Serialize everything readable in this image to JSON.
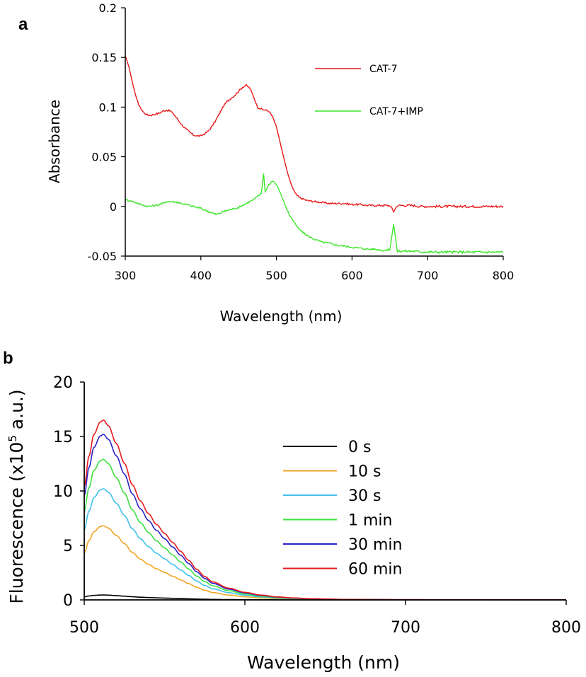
{
  "chart_data": [
    {
      "panel_label": "a",
      "type": "line",
      "xlabel": "Wavelength (nm)",
      "ylabel": "Absorbance",
      "xlim": [
        300,
        800
      ],
      "ylim": [
        -0.05,
        0.2
      ],
      "xticks": [
        "300",
        "400",
        "500",
        "600",
        "700",
        "800"
      ],
      "yticks": [
        "-0.05",
        "0",
        "0.05",
        "0.1",
        "0.15",
        "0.2"
      ],
      "legend_position": "top-right",
      "series": [
        {
          "name": "CAT-7",
          "color": "#e8191b",
          "points": [
            [
              300,
              0.152
            ],
            [
              305,
              0.14
            ],
            [
              310,
              0.123
            ],
            [
              315,
              0.108
            ],
            [
              320,
              0.099
            ],
            [
              325,
              0.094
            ],
            [
              330,
              0.092
            ],
            [
              335,
              0.092
            ],
            [
              340,
              0.093
            ],
            [
              345,
              0.094
            ],
            [
              350,
              0.096
            ],
            [
              355,
              0.097
            ],
            [
              360,
              0.096
            ],
            [
              365,
              0.092
            ],
            [
              370,
              0.087
            ],
            [
              375,
              0.082
            ],
            [
              380,
              0.078
            ],
            [
              385,
              0.075
            ],
            [
              390,
              0.072
            ],
            [
              395,
              0.071
            ],
            [
              400,
              0.071
            ],
            [
              405,
              0.073
            ],
            [
              410,
              0.076
            ],
            [
              415,
              0.081
            ],
            [
              420,
              0.087
            ],
            [
              425,
              0.094
            ],
            [
              430,
              0.101
            ],
            [
              435,
              0.106
            ],
            [
              440,
              0.109
            ],
            [
              445,
              0.112
            ],
            [
              450,
              0.116
            ],
            [
              455,
              0.12
            ],
            [
              460,
              0.122
            ],
            [
              465,
              0.119
            ],
            [
              470,
              0.11
            ],
            [
              475,
              0.1
            ],
            [
              480,
              0.098
            ],
            [
              485,
              0.097
            ],
            [
              490,
              0.096
            ],
            [
              495,
              0.09
            ],
            [
              500,
              0.08
            ],
            [
              505,
              0.064
            ],
            [
              510,
              0.048
            ],
            [
              515,
              0.033
            ],
            [
              520,
              0.021
            ],
            [
              525,
              0.013
            ],
            [
              530,
              0.009
            ],
            [
              540,
              0.006
            ],
            [
              550,
              0.005
            ],
            [
              560,
              0.004
            ],
            [
              570,
              0.003
            ],
            [
              580,
              0.003
            ],
            [
              590,
              0.003
            ],
            [
              600,
              0.002
            ],
            [
              610,
              0.002
            ],
            [
              620,
              0.001
            ],
            [
              630,
              0.001
            ],
            [
              640,
              0.001
            ],
            [
              650,
              0.001
            ],
            [
              655,
              -0.005
            ],
            [
              660,
              0.001
            ],
            [
              670,
              0.001
            ],
            [
              680,
              0.001
            ],
            [
              690,
              0.0
            ],
            [
              700,
              0.0
            ],
            [
              720,
              0.0
            ],
            [
              740,
              0.0
            ],
            [
              760,
              0.0
            ],
            [
              780,
              0.0
            ],
            [
              800,
              0.0
            ]
          ]
        },
        {
          "name": "CAT-7+IMP",
          "color": "#3de52a",
          "points": [
            [
              300,
              0.007
            ],
            [
              305,
              0.006
            ],
            [
              310,
              0.005
            ],
            [
              320,
              0.002
            ],
            [
              330,
              0.0
            ],
            [
              340,
              0.001
            ],
            [
              350,
              0.003
            ],
            [
              355,
              0.005
            ],
            [
              360,
              0.005
            ],
            [
              370,
              0.004
            ],
            [
              380,
              0.002
            ],
            [
              390,
              0.0
            ],
            [
              400,
              -0.002
            ],
            [
              410,
              -0.005
            ],
            [
              420,
              -0.008
            ],
            [
              425,
              -0.007
            ],
            [
              430,
              -0.005
            ],
            [
              440,
              -0.003
            ],
            [
              450,
              -0.001
            ],
            [
              460,
              0.003
            ],
            [
              470,
              0.007
            ],
            [
              475,
              0.01
            ],
            [
              480,
              0.013
            ],
            [
              483,
              0.033
            ],
            [
              485,
              0.015
            ],
            [
              490,
              0.022
            ],
            [
              495,
              0.026
            ],
            [
              500,
              0.022
            ],
            [
              505,
              0.014
            ],
            [
              510,
              0.004
            ],
            [
              515,
              -0.005
            ],
            [
              520,
              -0.012
            ],
            [
              525,
              -0.018
            ],
            [
              530,
              -0.023
            ],
            [
              540,
              -0.029
            ],
            [
              550,
              -0.033
            ],
            [
              560,
              -0.036
            ],
            [
              570,
              -0.037
            ],
            [
              580,
              -0.039
            ],
            [
              590,
              -0.04
            ],
            [
              600,
              -0.041
            ],
            [
              610,
              -0.042
            ],
            [
              620,
              -0.043
            ],
            [
              630,
              -0.043
            ],
            [
              640,
              -0.044
            ],
            [
              650,
              -0.044
            ],
            [
              655,
              -0.018
            ],
            [
              660,
              -0.045
            ],
            [
              670,
              -0.045
            ],
            [
              680,
              -0.045
            ],
            [
              700,
              -0.046
            ],
            [
              720,
              -0.046
            ],
            [
              740,
              -0.046
            ],
            [
              760,
              -0.046
            ],
            [
              780,
              -0.046
            ],
            [
              800,
              -0.046
            ]
          ]
        }
      ]
    },
    {
      "panel_label": "b",
      "type": "line",
      "xlabel": "Wavelength (nm)",
      "ylabel_prefix": "Fluorescence (x10",
      "ylabel_sup": "5",
      "ylabel_suffix": " a.u.)",
      "xlim": [
        500,
        800
      ],
      "ylim": [
        0,
        20
      ],
      "xticks": [
        "500",
        "600",
        "700",
        "800"
      ],
      "yticks": [
        "0",
        "5",
        "10",
        "15",
        "20"
      ],
      "legend_position": "center-right",
      "series": [
        {
          "name": "0 s",
          "color": "#000000",
          "peak": 0.45
        },
        {
          "name": "10 s",
          "color": "#f0a422",
          "peak": 6.8
        },
        {
          "name": "30 s",
          "color": "#40c0e8",
          "peak": 10.2
        },
        {
          "name": "1 min",
          "color": "#3ee040",
          "peak": 12.9
        },
        {
          "name": "30 min",
          "color": "#2a22c8",
          "peak": 15.2
        },
        {
          "name": "60 min",
          "color": "#e8191b",
          "peak": 16.5
        }
      ]
    }
  ]
}
